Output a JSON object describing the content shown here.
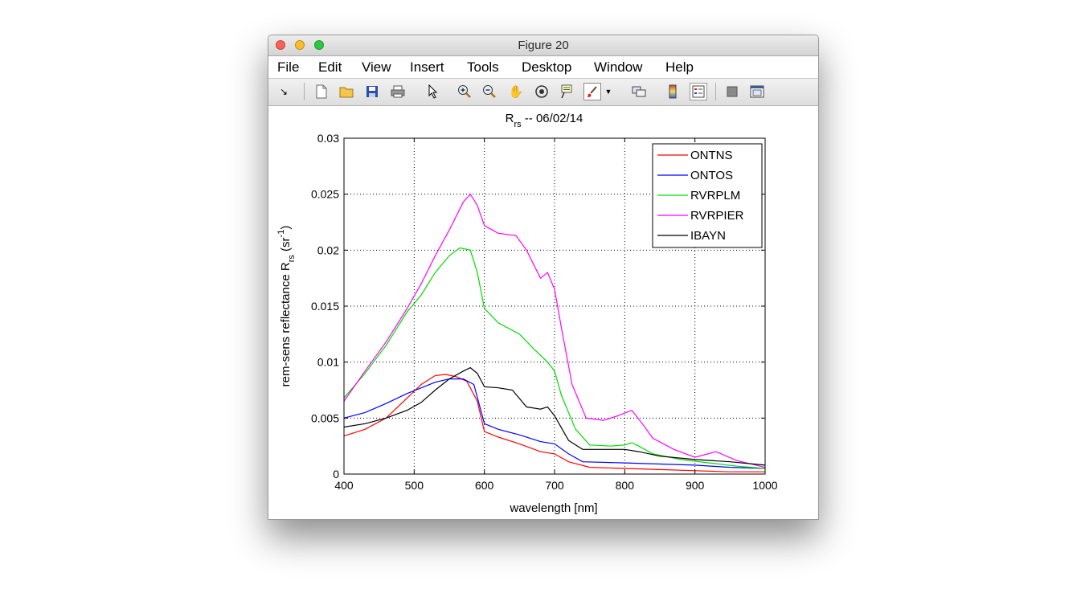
{
  "window": {
    "title": "Figure 20",
    "menu": [
      "File",
      "Edit",
      "View",
      "Insert",
      "Tools",
      "Desktop",
      "Window",
      "Help"
    ],
    "toolbar_icons": [
      "dock-arrow-icon",
      "new-figure-icon",
      "open-file-icon",
      "save-icon",
      "print-icon",
      "select-arrow-icon",
      "zoom-in-icon",
      "zoom-out-icon",
      "pan-hand-icon",
      "rotate-3d-icon",
      "data-cursor-icon",
      "brush-icon",
      "brush-dropdown-icon",
      "link-plot-icon",
      "colorbar-icon",
      "legend-icon",
      "hide-plot-tools-icon",
      "show-plot-tools-icon"
    ]
  },
  "chart_data": {
    "type": "line",
    "title": "R",
    "title_sub": "rs",
    "title_rest": " -- 06/02/14",
    "xlabel": "wavelength [nm]",
    "ylabel_main": "rem-sens reflectance R",
    "ylabel_sub": "rs",
    "ylabel_unit": " (sr",
    "ylabel_sup": "-1",
    "ylabel_close": ")",
    "xlim": [
      400,
      1000
    ],
    "ylim": [
      0,
      0.03
    ],
    "xticks": [
      "400",
      "500",
      "600",
      "700",
      "800",
      "900",
      "1000"
    ],
    "yticks": [
      "0",
      "0.005",
      "0.01",
      "0.015",
      "0.02",
      "0.025",
      "0.03"
    ],
    "grid": true,
    "legend_position": "top-right",
    "series": [
      {
        "name": "ONTNS",
        "color": "#ff0000",
        "points": [
          [
            400,
            0.0034
          ],
          [
            430,
            0.004
          ],
          [
            460,
            0.005
          ],
          [
            490,
            0.0068
          ],
          [
            510,
            0.008
          ],
          [
            530,
            0.0088
          ],
          [
            545,
            0.0089
          ],
          [
            560,
            0.0087
          ],
          [
            575,
            0.0083
          ],
          [
            590,
            0.0065
          ],
          [
            600,
            0.0038
          ],
          [
            620,
            0.0033
          ],
          [
            650,
            0.0027
          ],
          [
            680,
            0.002
          ],
          [
            700,
            0.0018
          ],
          [
            720,
            0.0011
          ],
          [
            750,
            0.0006
          ],
          [
            800,
            0.0005
          ],
          [
            850,
            0.0004
          ],
          [
            900,
            0.0003
          ],
          [
            950,
            0.0002
          ],
          [
            1000,
            0.0002
          ]
        ]
      },
      {
        "name": "ONTOS",
        "color": "#0000ff",
        "points": [
          [
            400,
            0.005
          ],
          [
            430,
            0.0055
          ],
          [
            460,
            0.0063
          ],
          [
            490,
            0.0072
          ],
          [
            510,
            0.0077
          ],
          [
            530,
            0.0082
          ],
          [
            550,
            0.0085
          ],
          [
            570,
            0.0085
          ],
          [
            585,
            0.008
          ],
          [
            600,
            0.0045
          ],
          [
            620,
            0.004
          ],
          [
            650,
            0.0035
          ],
          [
            680,
            0.0029
          ],
          [
            700,
            0.0027
          ],
          [
            720,
            0.0018
          ],
          [
            740,
            0.0011
          ],
          [
            800,
            0.001
          ],
          [
            850,
            0.0009
          ],
          [
            900,
            0.0008
          ],
          [
            950,
            0.0006
          ],
          [
            1000,
            0.0005
          ]
        ]
      },
      {
        "name": "RVRPLM",
        "color": "#00dd00",
        "points": [
          [
            400,
            0.0068
          ],
          [
            430,
            0.009
          ],
          [
            460,
            0.0115
          ],
          [
            490,
            0.0145
          ],
          [
            510,
            0.016
          ],
          [
            530,
            0.018
          ],
          [
            550,
            0.0195
          ],
          [
            565,
            0.0202
          ],
          [
            580,
            0.02
          ],
          [
            590,
            0.018
          ],
          [
            600,
            0.0148
          ],
          [
            620,
            0.0135
          ],
          [
            650,
            0.0125
          ],
          [
            670,
            0.0112
          ],
          [
            690,
            0.01
          ],
          [
            700,
            0.0092
          ],
          [
            710,
            0.007
          ],
          [
            730,
            0.004
          ],
          [
            750,
            0.0026
          ],
          [
            780,
            0.0025
          ],
          [
            800,
            0.0026
          ],
          [
            810,
            0.0028
          ],
          [
            820,
            0.0025
          ],
          [
            840,
            0.0018
          ],
          [
            880,
            0.0013
          ],
          [
            920,
            0.001
          ],
          [
            960,
            0.0007
          ],
          [
            1000,
            0.0005
          ]
        ]
      },
      {
        "name": "RVRPIER",
        "color": "#ff00ff",
        "points": [
          [
            400,
            0.0065
          ],
          [
            430,
            0.0092
          ],
          [
            460,
            0.0118
          ],
          [
            490,
            0.0148
          ],
          [
            510,
            0.017
          ],
          [
            530,
            0.0195
          ],
          [
            550,
            0.0218
          ],
          [
            570,
            0.0243
          ],
          [
            580,
            0.025
          ],
          [
            590,
            0.024
          ],
          [
            600,
            0.0222
          ],
          [
            620,
            0.0215
          ],
          [
            645,
            0.0213
          ],
          [
            660,
            0.02
          ],
          [
            680,
            0.0175
          ],
          [
            690,
            0.018
          ],
          [
            700,
            0.0165
          ],
          [
            710,
            0.013
          ],
          [
            725,
            0.008
          ],
          [
            745,
            0.005
          ],
          [
            770,
            0.0048
          ],
          [
            790,
            0.0052
          ],
          [
            810,
            0.0057
          ],
          [
            825,
            0.0045
          ],
          [
            840,
            0.0032
          ],
          [
            870,
            0.0022
          ],
          [
            900,
            0.0015
          ],
          [
            930,
            0.002
          ],
          [
            960,
            0.0012
          ],
          [
            1000,
            0.0006
          ]
        ]
      },
      {
        "name": "IBAYN",
        "color": "#000000",
        "points": [
          [
            400,
            0.0042
          ],
          [
            430,
            0.0045
          ],
          [
            460,
            0.005
          ],
          [
            490,
            0.0057
          ],
          [
            510,
            0.0064
          ],
          [
            530,
            0.0075
          ],
          [
            550,
            0.0085
          ],
          [
            570,
            0.0092
          ],
          [
            580,
            0.0095
          ],
          [
            590,
            0.009
          ],
          [
            600,
            0.0078
          ],
          [
            620,
            0.0077
          ],
          [
            640,
            0.0075
          ],
          [
            660,
            0.006
          ],
          [
            680,
            0.0058
          ],
          [
            690,
            0.006
          ],
          [
            700,
            0.0052
          ],
          [
            720,
            0.003
          ],
          [
            740,
            0.0022
          ],
          [
            800,
            0.0022
          ],
          [
            820,
            0.002
          ],
          [
            850,
            0.0016
          ],
          [
            900,
            0.0013
          ],
          [
            950,
            0.0011
          ],
          [
            1000,
            0.0008
          ]
        ]
      }
    ]
  }
}
